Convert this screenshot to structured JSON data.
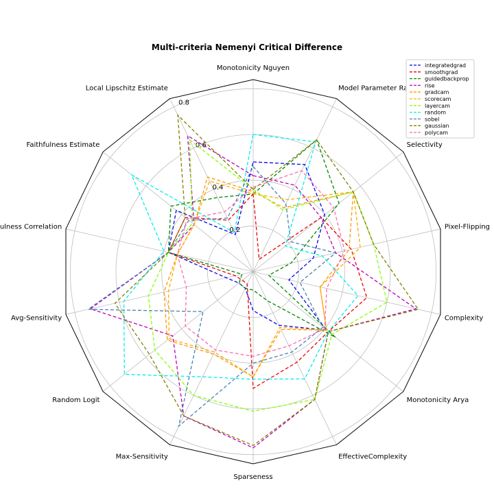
{
  "chart_data": {
    "type": "radar",
    "title": "Multi-criteria Nemenyi Critical Difference",
    "axes": [
      "Monotonicity Nguyen",
      "Model Parameter Randomisation",
      "Selectivity",
      "Pixel-Flipping",
      "Complexity",
      "Monotonicity Arya",
      "EffectiveComplexity",
      "Sparseness",
      "Max-Sensitivity",
      "Random Logit",
      "Avg-Sensitivity",
      "Faithfulness Correlation",
      "Faithfulness Estimate",
      "Local Lipschitz Estimate"
    ],
    "rlim": [
      0,
      0.84
    ],
    "rticks": [
      0.2,
      0.4,
      0.6,
      0.8
    ],
    "rtick_labels": [
      "0.2",
      "0.4",
      "0.6",
      "0.8"
    ],
    "grid": true,
    "legend_position": "top-right",
    "series": [
      {
        "name": "integratedgrad",
        "color": "#0000ee",
        "values": [
          0.48,
          0.52,
          0.4,
          0.27,
          0.16,
          0.41,
          0.26,
          0.17,
          0.08,
          0.08,
          0.12,
          0.38,
          0.43,
          0.18
        ]
      },
      {
        "name": "smoothgrad",
        "color": "#ee0000",
        "values": [
          0.34,
          0.06,
          0.38,
          0.44,
          0.51,
          0.42,
          0.44,
          0.51,
          0.06,
          0.06,
          0.08,
          0.38,
          0.38,
          0.25
        ]
      },
      {
        "name": "guidedbackprop",
        "color": "#008800",
        "values": [
          0.34,
          0.64,
          0.48,
          0.17,
          0.07,
          0.46,
          0.14,
          0.08,
          0.08,
          0.08,
          0.05,
          0.38,
          0.46,
          0.36
        ]
      },
      {
        "name": "rise",
        "color": "#bb00bb",
        "values": [
          0.42,
          0.42,
          0.38,
          0.37,
          0.73,
          0.42,
          0.62,
          0.77,
          0.7,
          0.45,
          0.73,
          0.38,
          0.33,
          0.66
        ]
      },
      {
        "name": "gradcam",
        "color": "#ff9900",
        "values": [
          0.35,
          0.31,
          0.56,
          0.43,
          0.3,
          0.41,
          0.28,
          0.46,
          0.4,
          0.48,
          0.4,
          0.34,
          0.33,
          0.46
        ]
      },
      {
        "name": "scorecam",
        "color": "#ffaa00",
        "values": [
          0.34,
          0.35,
          0.56,
          0.48,
          0.3,
          0.41,
          0.27,
          0.46,
          0.39,
          0.47,
          0.38,
          0.34,
          0.33,
          0.44
        ]
      },
      {
        "name": "layercam",
        "color": "#88ff00",
        "values": [
          0.36,
          0.3,
          0.56,
          0.54,
          0.6,
          0.44,
          0.62,
          0.61,
          0.6,
          0.55,
          0.47,
          0.38,
          0.34,
          0.64
        ]
      },
      {
        "name": "random",
        "color": "#00eeee",
        "values": [
          0.6,
          0.63,
          0.18,
          0.31,
          0.47,
          0.42,
          0.52,
          0.47,
          0.51,
          0.72,
          0.58,
          0.4,
          0.68,
          0.19
        ]
      },
      {
        "name": "sobel",
        "color": "#4682b4",
        "values": [
          0.46,
          0.33,
          0.21,
          0.37,
          0.21,
          0.39,
          0.39,
          0.4,
          0.75,
          0.28,
          0.74,
          0.38,
          0.36,
          0.26
        ]
      },
      {
        "name": "gaussian",
        "color": "#808000",
        "values": [
          0.36,
          0.64,
          0.56,
          0.54,
          0.74,
          0.42,
          0.62,
          0.76,
          0.7,
          0.58,
          0.62,
          0.38,
          0.38,
          0.76
        ]
      },
      {
        "name": "polycam",
        "color": "#ff69b4",
        "values": [
          0.37,
          0.49,
          0.45,
          0.41,
          0.33,
          0.4,
          0.36,
          0.37,
          0.38,
          0.38,
          0.3,
          0.34,
          0.37,
          0.29
        ]
      }
    ]
  }
}
